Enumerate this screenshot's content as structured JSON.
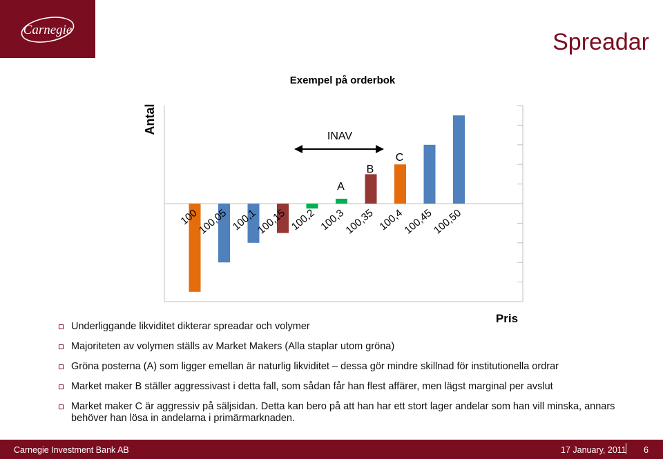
{
  "header": {
    "logo_text": "Carnegie",
    "title": "Spreadar"
  },
  "chart_data": {
    "type": "bar",
    "title": "Exempel på orderbok",
    "ylabel": "Antal",
    "xlabel": "Pris",
    "categories": [
      "100",
      "100,05",
      "100,1",
      "100,15",
      "100,2",
      "100,3",
      "100,35",
      "100,4",
      "100,45",
      "100,50"
    ],
    "values": [
      -4.5,
      -3,
      -2,
      -1.5,
      -0.25,
      0.25,
      1.5,
      2,
      3,
      4.5
    ],
    "bar_colors": [
      "#e46c0a",
      "#4f81bd",
      "#4f81bd",
      "#953735",
      "#00b050",
      "#00b050",
      "#953735",
      "#e46c0a",
      "#4f81bd",
      "#4f81bd"
    ],
    "annotations": {
      "inav": "INAV",
      "a": "A",
      "b": "B",
      "c": "C"
    },
    "ylim": [
      -5,
      5
    ],
    "grid": false,
    "legend": "none"
  },
  "bullets": [
    "Underliggande likviditet dikterar  spreadar och volymer",
    "Majoriteten av volymen ställs av Market Makers (Alla staplar utom gröna)",
    "Gröna posterna (A) som ligger emellan är naturlig likviditet – dessa gör mindre skillnad för institutionella ordrar",
    "Market maker B ställer aggressivast i detta fall, som sådan får han flest affärer, men lägst marginal per avslut",
    "Market maker C är aggressiv på säljsidan. Detta kan bero på att han har ett stort lager andelar som han vill minska, annars behöver han lösa in andelarna i primärmarknaden."
  ],
  "footer": {
    "company": "Carnegie Investment Bank AB",
    "date": "17 January, 2011",
    "page": "6"
  },
  "colors": {
    "brand": "#7a0d1f",
    "orange": "#e46c0a",
    "blue": "#4f81bd",
    "red": "#953735",
    "green": "#00b050"
  }
}
